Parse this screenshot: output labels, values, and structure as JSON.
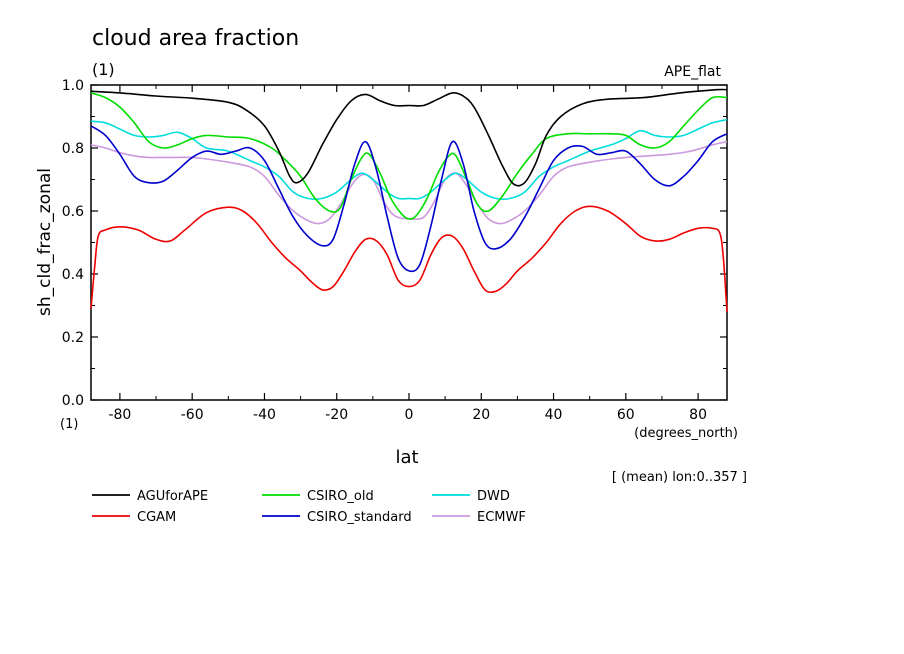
{
  "chart_data": {
    "type": "line",
    "title": "cloud area fraction",
    "subtitle": "(1)",
    "experiment": "APE_flat",
    "xlabel": "lat",
    "xunits": "(degrees_north)",
    "ylabel": "sh_cld_frac_zonal",
    "yunits": "(1)",
    "note": "[ (mean) lon:0..357 ]",
    "xlim": [
      -88,
      88
    ],
    "ylim": [
      0,
      1.0
    ],
    "x_ticks": [
      -80,
      -60,
      -40,
      -20,
      0,
      20,
      40,
      60,
      80
    ],
    "x_tick_labels": [
      "-80",
      "-60",
      "-40",
      "-20",
      "0",
      "20",
      "40",
      "60",
      "80"
    ],
    "y_ticks": [
      0,
      0.2,
      0.4,
      0.6,
      0.8,
      1.0
    ],
    "y_tick_labels": [
      "0.0",
      "0.2",
      "0.4",
      "0.6",
      "0.8",
      "1.0"
    ],
    "grid": false,
    "legend_position": "bottom",
    "series": [
      {
        "name": "AGUforAPE",
        "color": "#000000",
        "points": [
          [
            -88,
            0.98
          ],
          [
            -80,
            0.975
          ],
          [
            -70,
            0.965
          ],
          [
            -60,
            0.958
          ],
          [
            -50,
            0.945
          ],
          [
            -45,
            0.92
          ],
          [
            -40,
            0.87
          ],
          [
            -36,
            0.79
          ],
          [
            -33,
            0.71
          ],
          [
            -31,
            0.69
          ],
          [
            -28,
            0.72
          ],
          [
            -24,
            0.81
          ],
          [
            -20,
            0.89
          ],
          [
            -16,
            0.95
          ],
          [
            -12,
            0.97
          ],
          [
            -8,
            0.95
          ],
          [
            -4,
            0.935
          ],
          [
            0,
            0.935
          ],
          [
            4,
            0.935
          ],
          [
            8,
            0.955
          ],
          [
            12,
            0.975
          ],
          [
            15,
            0.965
          ],
          [
            18,
            0.93
          ],
          [
            22,
            0.84
          ],
          [
            26,
            0.74
          ],
          [
            29,
            0.685
          ],
          [
            32,
            0.69
          ],
          [
            35,
            0.75
          ],
          [
            38,
            0.84
          ],
          [
            42,
            0.9
          ],
          [
            48,
            0.94
          ],
          [
            55,
            0.955
          ],
          [
            65,
            0.96
          ],
          [
            75,
            0.975
          ],
          [
            85,
            0.985
          ],
          [
            88,
            0.985
          ]
        ]
      },
      {
        "name": "CGAM",
        "color": "#ee0000",
        "points": [
          [
            -88,
            0.29
          ],
          [
            -87,
            0.42
          ],
          [
            -86,
            0.52
          ],
          [
            -84,
            0.54
          ],
          [
            -80,
            0.55
          ],
          [
            -75,
            0.54
          ],
          [
            -70,
            0.51
          ],
          [
            -66,
            0.505
          ],
          [
            -62,
            0.54
          ],
          [
            -56,
            0.595
          ],
          [
            -50,
            0.612
          ],
          [
            -46,
            0.6
          ],
          [
            -42,
            0.56
          ],
          [
            -38,
            0.5
          ],
          [
            -34,
            0.45
          ],
          [
            -30,
            0.41
          ],
          [
            -27,
            0.375
          ],
          [
            -24,
            0.35
          ],
          [
            -21,
            0.36
          ],
          [
            -18,
            0.41
          ],
          [
            -15,
            0.47
          ],
          [
            -12,
            0.51
          ],
          [
            -9,
            0.505
          ],
          [
            -6,
            0.46
          ],
          [
            -3,
            0.38
          ],
          [
            0,
            0.36
          ],
          [
            3,
            0.38
          ],
          [
            6,
            0.46
          ],
          [
            9,
            0.515
          ],
          [
            12,
            0.52
          ],
          [
            15,
            0.48
          ],
          [
            18,
            0.41
          ],
          [
            21,
            0.35
          ],
          [
            24,
            0.345
          ],
          [
            27,
            0.37
          ],
          [
            30,
            0.41
          ],
          [
            34,
            0.45
          ],
          [
            38,
            0.5
          ],
          [
            42,
            0.56
          ],
          [
            46,
            0.6
          ],
          [
            50,
            0.615
          ],
          [
            55,
            0.6
          ],
          [
            60,
            0.56
          ],
          [
            64,
            0.52
          ],
          [
            68,
            0.505
          ],
          [
            72,
            0.51
          ],
          [
            76,
            0.53
          ],
          [
            80,
            0.545
          ],
          [
            84,
            0.545
          ],
          [
            86,
            0.53
          ],
          [
            87,
            0.45
          ],
          [
            88,
            0.28
          ]
        ]
      },
      {
        "name": "CSIRO_old",
        "color": "#00dd00",
        "points": [
          [
            -88,
            0.975
          ],
          [
            -84,
            0.96
          ],
          [
            -80,
            0.93
          ],
          [
            -76,
            0.88
          ],
          [
            -72,
            0.82
          ],
          [
            -68,
            0.8
          ],
          [
            -64,
            0.81
          ],
          [
            -60,
            0.83
          ],
          [
            -56,
            0.84
          ],
          [
            -50,
            0.835
          ],
          [
            -44,
            0.83
          ],
          [
            -38,
            0.8
          ],
          [
            -34,
            0.76
          ],
          [
            -30,
            0.71
          ],
          [
            -26,
            0.64
          ],
          [
            -22,
            0.6
          ],
          [
            -19,
            0.61
          ],
          [
            -16,
            0.7
          ],
          [
            -13,
            0.77
          ],
          [
            -11,
            0.78
          ],
          [
            -8,
            0.72
          ],
          [
            -5,
            0.64
          ],
          [
            -2,
            0.59
          ],
          [
            0,
            0.575
          ],
          [
            2,
            0.585
          ],
          [
            5,
            0.64
          ],
          [
            8,
            0.72
          ],
          [
            11,
            0.775
          ],
          [
            13,
            0.775
          ],
          [
            16,
            0.7
          ],
          [
            19,
            0.62
          ],
          [
            22,
            0.6
          ],
          [
            26,
            0.65
          ],
          [
            30,
            0.72
          ],
          [
            34,
            0.78
          ],
          [
            38,
            0.83
          ],
          [
            44,
            0.845
          ],
          [
            50,
            0.845
          ],
          [
            56,
            0.845
          ],
          [
            60,
            0.84
          ],
          [
            64,
            0.81
          ],
          [
            68,
            0.8
          ],
          [
            72,
            0.82
          ],
          [
            76,
            0.87
          ],
          [
            80,
            0.92
          ],
          [
            84,
            0.96
          ],
          [
            88,
            0.96
          ]
        ]
      },
      {
        "name": "CSIRO_standard",
        "color": "#0000cc",
        "points": [
          [
            -88,
            0.87
          ],
          [
            -84,
            0.84
          ],
          [
            -80,
            0.78
          ],
          [
            -76,
            0.71
          ],
          [
            -72,
            0.69
          ],
          [
            -68,
            0.695
          ],
          [
            -64,
            0.73
          ],
          [
            -60,
            0.77
          ],
          [
            -56,
            0.79
          ],
          [
            -52,
            0.78
          ],
          [
            -48,
            0.79
          ],
          [
            -44,
            0.8
          ],
          [
            -40,
            0.76
          ],
          [
            -36,
            0.67
          ],
          [
            -32,
            0.58
          ],
          [
            -28,
            0.52
          ],
          [
            -24,
            0.49
          ],
          [
            -21,
            0.51
          ],
          [
            -18,
            0.62
          ],
          [
            -15,
            0.75
          ],
          [
            -12,
            0.82
          ],
          [
            -9,
            0.73
          ],
          [
            -6,
            0.58
          ],
          [
            -3,
            0.45
          ],
          [
            0,
            0.41
          ],
          [
            3,
            0.43
          ],
          [
            6,
            0.55
          ],
          [
            9,
            0.7
          ],
          [
            12,
            0.82
          ],
          [
            15,
            0.75
          ],
          [
            18,
            0.6
          ],
          [
            21,
            0.5
          ],
          [
            24,
            0.48
          ],
          [
            28,
            0.51
          ],
          [
            32,
            0.58
          ],
          [
            36,
            0.67
          ],
          [
            40,
            0.76
          ],
          [
            44,
            0.8
          ],
          [
            48,
            0.805
          ],
          [
            52,
            0.78
          ],
          [
            56,
            0.785
          ],
          [
            60,
            0.79
          ],
          [
            64,
            0.75
          ],
          [
            68,
            0.7
          ],
          [
            72,
            0.68
          ],
          [
            76,
            0.71
          ],
          [
            80,
            0.76
          ],
          [
            84,
            0.82
          ],
          [
            88,
            0.845
          ]
        ]
      },
      {
        "name": "DWD",
        "color": "#00dddd",
        "points": [
          [
            -88,
            0.885
          ],
          [
            -84,
            0.88
          ],
          [
            -80,
            0.86
          ],
          [
            -76,
            0.84
          ],
          [
            -72,
            0.835
          ],
          [
            -68,
            0.84
          ],
          [
            -64,
            0.85
          ],
          [
            -60,
            0.83
          ],
          [
            -56,
            0.8
          ],
          [
            -50,
            0.79
          ],
          [
            -44,
            0.76
          ],
          [
            -40,
            0.74
          ],
          [
            -36,
            0.71
          ],
          [
            -32,
            0.66
          ],
          [
            -28,
            0.64
          ],
          [
            -24,
            0.64
          ],
          [
            -20,
            0.66
          ],
          [
            -16,
            0.7
          ],
          [
            -13,
            0.72
          ],
          [
            -10,
            0.7
          ],
          [
            -6,
            0.66
          ],
          [
            -3,
            0.64
          ],
          [
            0,
            0.64
          ],
          [
            3,
            0.64
          ],
          [
            6,
            0.66
          ],
          [
            10,
            0.7
          ],
          [
            13,
            0.72
          ],
          [
            16,
            0.7
          ],
          [
            20,
            0.66
          ],
          [
            24,
            0.64
          ],
          [
            28,
            0.64
          ],
          [
            32,
            0.66
          ],
          [
            36,
            0.71
          ],
          [
            40,
            0.74
          ],
          [
            44,
            0.76
          ],
          [
            50,
            0.79
          ],
          [
            56,
            0.81
          ],
          [
            60,
            0.83
          ],
          [
            64,
            0.855
          ],
          [
            68,
            0.84
          ],
          [
            72,
            0.835
          ],
          [
            76,
            0.84
          ],
          [
            80,
            0.86
          ],
          [
            84,
            0.88
          ],
          [
            88,
            0.89
          ]
        ]
      },
      {
        "name": "ECMWF",
        "color": "#cc99dd",
        "points": [
          [
            -88,
            0.81
          ],
          [
            -84,
            0.8
          ],
          [
            -80,
            0.785
          ],
          [
            -76,
            0.775
          ],
          [
            -72,
            0.77
          ],
          [
            -68,
            0.77
          ],
          [
            -64,
            0.77
          ],
          [
            -60,
            0.77
          ],
          [
            -56,
            0.765
          ],
          [
            -50,
            0.755
          ],
          [
            -44,
            0.74
          ],
          [
            -40,
            0.71
          ],
          [
            -36,
            0.65
          ],
          [
            -32,
            0.6
          ],
          [
            -28,
            0.57
          ],
          [
            -25,
            0.56
          ],
          [
            -22,
            0.575
          ],
          [
            -19,
            0.62
          ],
          [
            -16,
            0.68
          ],
          [
            -13,
            0.715
          ],
          [
            -10,
            0.7
          ],
          [
            -7,
            0.63
          ],
          [
            -4,
            0.585
          ],
          [
            0,
            0.575
          ],
          [
            4,
            0.58
          ],
          [
            7,
            0.63
          ],
          [
            10,
            0.7
          ],
          [
            13,
            0.72
          ],
          [
            16,
            0.68
          ],
          [
            19,
            0.62
          ],
          [
            22,
            0.575
          ],
          [
            25,
            0.56
          ],
          [
            28,
            0.57
          ],
          [
            32,
            0.6
          ],
          [
            36,
            0.65
          ],
          [
            40,
            0.71
          ],
          [
            44,
            0.74
          ],
          [
            50,
            0.755
          ],
          [
            56,
            0.765
          ],
          [
            60,
            0.77
          ],
          [
            66,
            0.775
          ],
          [
            72,
            0.78
          ],
          [
            78,
            0.79
          ],
          [
            84,
            0.81
          ],
          [
            88,
            0.82
          ]
        ]
      }
    ]
  }
}
